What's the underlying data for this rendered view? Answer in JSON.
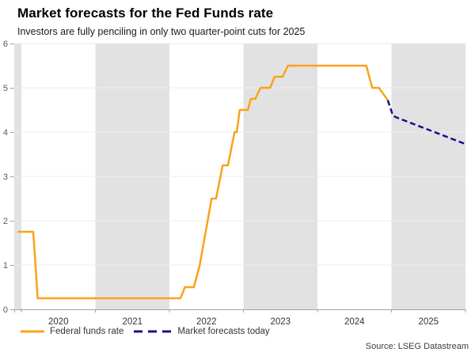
{
  "header": {
    "title": "Market forecasts for the Fed Funds rate",
    "subtitle": "Investors are fully penciling in only two quarter-point cuts for 2025"
  },
  "legend": {
    "items": [
      {
        "label": "Federal funds rate",
        "style": "solid"
      },
      {
        "label": "Market forecasts today",
        "style": "dashed"
      }
    ]
  },
  "footer": {
    "source": "Source: LSEG Datastream"
  },
  "colors": {
    "fed_line": "#FAA21B",
    "forecast_line": "#14148C",
    "year_band": "#E2E2E2",
    "gridline": "#EDEDED",
    "axis": "#A3A3A3",
    "y_tick_label": "#595959",
    "x_tick_label": "#333333"
  },
  "chart_data": {
    "type": "line",
    "title": "Market forecasts for the Fed Funds rate",
    "subtitle": "Investors are fully penciling in only two quarter-point cuts for 2025",
    "xlabel": "",
    "ylabel": "",
    "x_range": [
      2019.9,
      2026.0
    ],
    "ylim": [
      0,
      6
    ],
    "y_ticks": [
      0,
      1,
      2,
      3,
      4,
      5,
      6
    ],
    "x_tick_labels": [
      "2020",
      "2021",
      "2022",
      "2023",
      "2024",
      "2025"
    ],
    "x_tick_positions": [
      2020.5,
      2021.5,
      2022.5,
      2023.5,
      2024.5,
      2025.5
    ],
    "x_axis_tick_years": [
      2020,
      2021,
      2022,
      2023,
      2024,
      2025,
      2026
    ],
    "shaded_spans": [
      [
        2019.9,
        2020
      ],
      [
        2021,
        2022
      ],
      [
        2023,
        2024
      ],
      [
        2025,
        2026
      ]
    ],
    "grid": "horizontal",
    "legend_position": "bottom-left",
    "series": [
      {
        "name": "Federal funds rate",
        "style": "solid",
        "color": "#FAA21B",
        "points": [
          [
            2019.95,
            1.75
          ],
          [
            2020.16,
            1.75
          ],
          [
            2020.22,
            0.25
          ],
          [
            2022.15,
            0.25
          ],
          [
            2022.21,
            0.5
          ],
          [
            2022.33,
            0.5
          ],
          [
            2022.41,
            1.0
          ],
          [
            2022.57,
            2.5
          ],
          [
            2022.63,
            2.5
          ],
          [
            2022.72,
            3.25
          ],
          [
            2022.79,
            3.25
          ],
          [
            2022.88,
            4.0
          ],
          [
            2022.91,
            4.0
          ],
          [
            2022.95,
            4.5
          ],
          [
            2023.06,
            4.5
          ],
          [
            2023.1,
            4.75
          ],
          [
            2023.16,
            4.75
          ],
          [
            2023.23,
            5.0
          ],
          [
            2023.36,
            5.0
          ],
          [
            2023.42,
            5.25
          ],
          [
            2023.53,
            5.25
          ],
          [
            2023.6,
            5.5
          ],
          [
            2024.66,
            5.5
          ],
          [
            2024.74,
            5.0
          ],
          [
            2024.83,
            5.0
          ],
          [
            2024.95,
            4.72
          ]
        ]
      },
      {
        "name": "Market forecasts today",
        "style": "dashed",
        "color": "#14148C",
        "points": [
          [
            2024.95,
            4.72
          ],
          [
            2025.02,
            4.37
          ],
          [
            2025.07,
            4.33
          ],
          [
            2026.0,
            3.73
          ]
        ]
      }
    ]
  }
}
